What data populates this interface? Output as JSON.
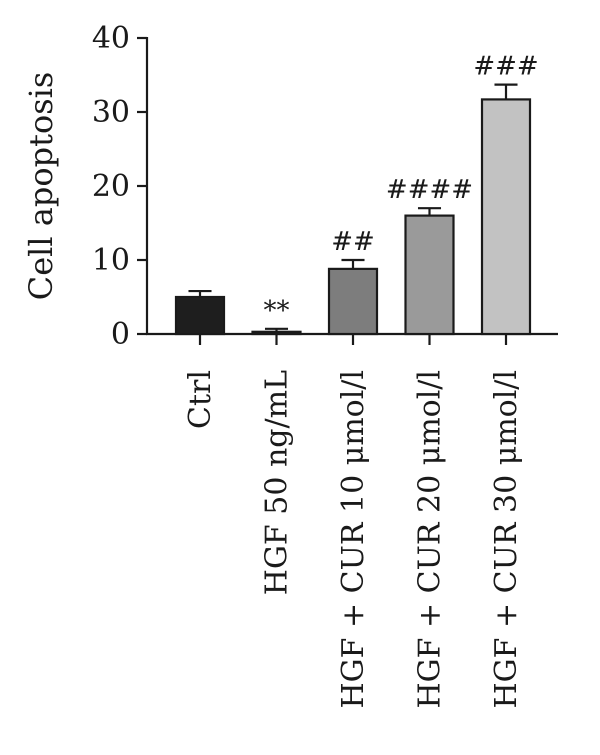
{
  "chart_data": {
    "type": "bar",
    "title": "",
    "xlabel": "",
    "ylabel": "Cell apoptosis",
    "ylim": [
      0,
      40
    ],
    "yticks": [
      0,
      10,
      20,
      30,
      40
    ],
    "grid": false,
    "legend": "none",
    "categories": [
      "Ctrl",
      "HGF 50 ng/mL",
      "HGF + CUR 10 μmol/l",
      "HGF + CUR 20 μmol/l",
      "HGF + CUR 30 μmol/l"
    ],
    "values": [
      5.0,
      0.3,
      8.8,
      16.0,
      31.7
    ],
    "errors": [
      0.8,
      0.4,
      1.2,
      1.0,
      2.0
    ],
    "annotations": [
      "",
      "**",
      "##",
      "####",
      "###"
    ],
    "colors": [
      "#1e1e1e",
      "#1e1e1e",
      "#7d7d7d",
      "#9a9a9a",
      "#c2c2c2"
    ]
  }
}
